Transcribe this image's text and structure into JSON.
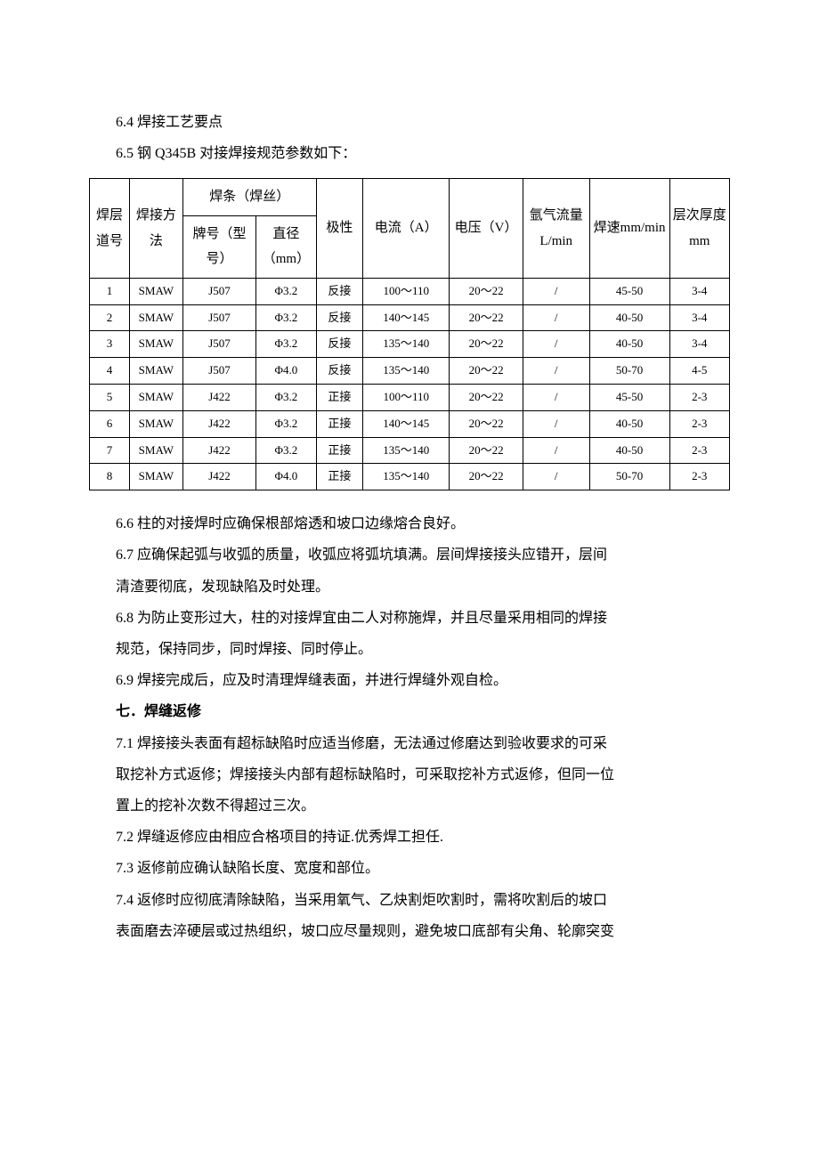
{
  "text": {
    "t64": "6.4 焊接工艺要点",
    "t65": "6.5 钢 Q345B 对接焊接规范参数如下：",
    "t66": "6.6 柱的对接焊时应确保根部熔透和坡口边缘熔合良好。",
    "t67a": "6.7 应确保起弧与收弧的质量，收弧应将弧坑填满。层间焊接接头应错开，层间",
    "t67b": "清渣要彻底，发现缺陷及时处理。",
    "t68a": "6.8 为防止变形过大，柱的对接焊宜由二人对称施焊，并且尽量采用相同的焊接",
    "t68b": "规范，保持同步，同时焊接、同时停止。",
    "t69": "6.9 焊接完成后，应及时清理焊缝表面，并进行焊缝外观自检。",
    "t7": "七．焊缝返修",
    "t71a": "7.1 焊接接头表面有超标缺陷时应适当修磨，无法通过修磨达到验收要求的可采",
    "t71b": "取挖补方式返修；焊接接头内部有超标缺陷时，可采取挖补方式返修，但同一位",
    "t71c": "置上的挖补次数不得超过三次。",
    "t72": "7.2 焊缝返修应由相应合格项目的持证.优秀焊工担任.",
    "t73": "7.3 返修前应确认缺陷长度、宽度和部位。",
    "t74a": "7.4 返修时应彻底清除缺陷，当采用氧气、乙炔割炬吹割时，需将吹割后的坡口",
    "t74b": "表面磨去淬硬层或过热组织，坡口应尽量规则，避免坡口底部有尖角、轮廓突变"
  },
  "table": {
    "headers": {
      "idx": "焊层道号",
      "method": "焊接方法",
      "wire_group": "焊条（焊丝）",
      "brand": "牌号（型号）",
      "diameter": "直径（mm）",
      "polarity": "极性",
      "current": "电流（A）",
      "voltage": "电压（V）",
      "argon": "氩气流量L/min",
      "speed": "焊速mm/min",
      "thickness": "层次厚度mm"
    },
    "rows": [
      {
        "idx": "1",
        "method": "SMAW",
        "brand": "J507",
        "dia": "Φ3.2",
        "pol": "反接",
        "cur": "100～110",
        "volt": "20～22",
        "argon": "/",
        "speed": "45-50",
        "thick": "3-4"
      },
      {
        "idx": "2",
        "method": "SMAW",
        "brand": "J507",
        "dia": "Φ3.2",
        "pol": "反接",
        "cur": "140～145",
        "volt": "20～22",
        "argon": "/",
        "speed": "40-50",
        "thick": "3-4"
      },
      {
        "idx": "3",
        "method": "SMAW",
        "brand": "J507",
        "dia": "Φ3.2",
        "pol": "反接",
        "cur": "135～140",
        "volt": "20～22",
        "argon": "/",
        "speed": "40-50",
        "thick": "3-4"
      },
      {
        "idx": "4",
        "method": "SMAW",
        "brand": "J507",
        "dia": "Φ4.0",
        "pol": "反接",
        "cur": "135～140",
        "volt": "20～22",
        "argon": "/",
        "speed": "50-70",
        "thick": "4-5"
      },
      {
        "idx": "5",
        "method": "SMAW",
        "brand": "J422",
        "dia": "Φ3.2",
        "pol": "正接",
        "cur": "100～110",
        "volt": "20～22",
        "argon": "/",
        "speed": "45-50",
        "thick": "2-3"
      },
      {
        "idx": "6",
        "method": "SMAW",
        "brand": "J422",
        "dia": "Φ3.2",
        "pol": "正接",
        "cur": "140～145",
        "volt": "20～22",
        "argon": "/",
        "speed": "40-50",
        "thick": "2-3"
      },
      {
        "idx": "7",
        "method": "SMAW",
        "brand": "J422",
        "dia": "Φ3.2",
        "pol": "正接",
        "cur": "135～140",
        "volt": "20～22",
        "argon": "/",
        "speed": "40-50",
        "thick": "2-3"
      },
      {
        "idx": "8",
        "method": "SMAW",
        "brand": "J422",
        "dia": "Φ4.0",
        "pol": "正接",
        "cur": "135～140",
        "volt": "20～22",
        "argon": "/",
        "speed": "50-70",
        "thick": "2-3"
      }
    ]
  }
}
